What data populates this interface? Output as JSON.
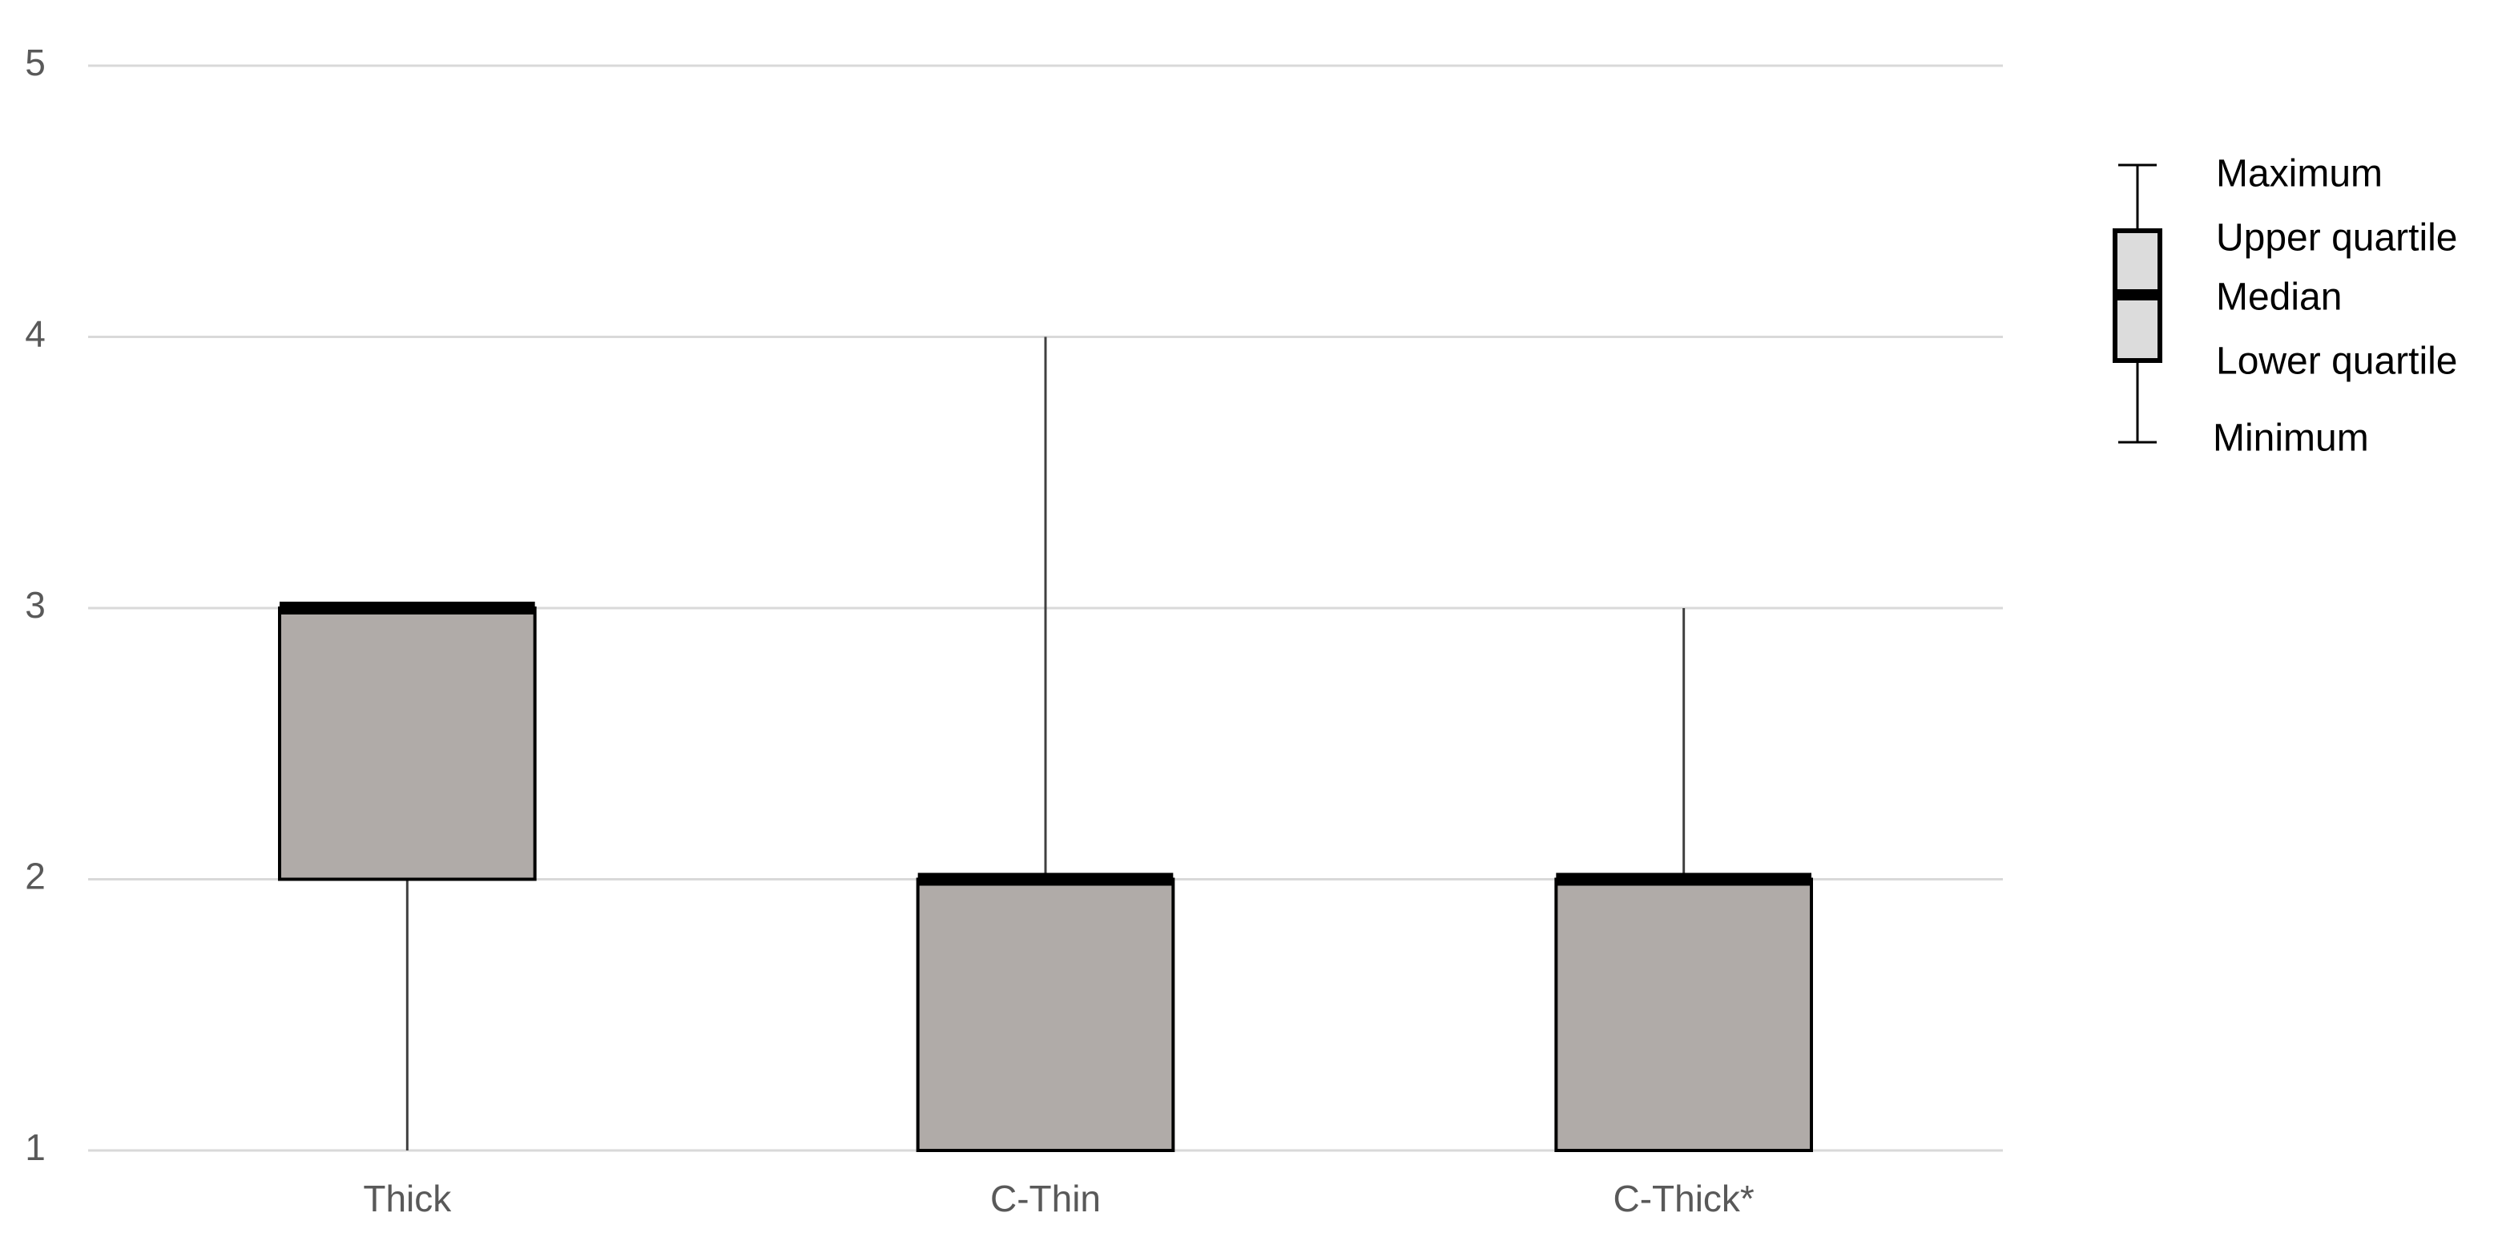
{
  "chart_data": {
    "type": "box",
    "categories": [
      "Thick",
      "C-Thin",
      "C-Thick*"
    ],
    "min": [
      1,
      1,
      1
    ],
    "q1": [
      2,
      1,
      1
    ],
    "median": [
      3,
      2,
      2
    ],
    "q3": [
      3,
      2,
      2
    ],
    "max": [
      3,
      4,
      3
    ],
    "color": "#b0aba8",
    "ylim": [
      1,
      5
    ],
    "yticks": [
      1,
      2,
      3,
      4,
      5
    ],
    "grid": true,
    "legend": {
      "maximum": "Maximum",
      "upper_quartile": "Upper quartile",
      "median": "Median",
      "lower_quartile": "Lower quartile",
      "minimum": "Minimum"
    }
  }
}
